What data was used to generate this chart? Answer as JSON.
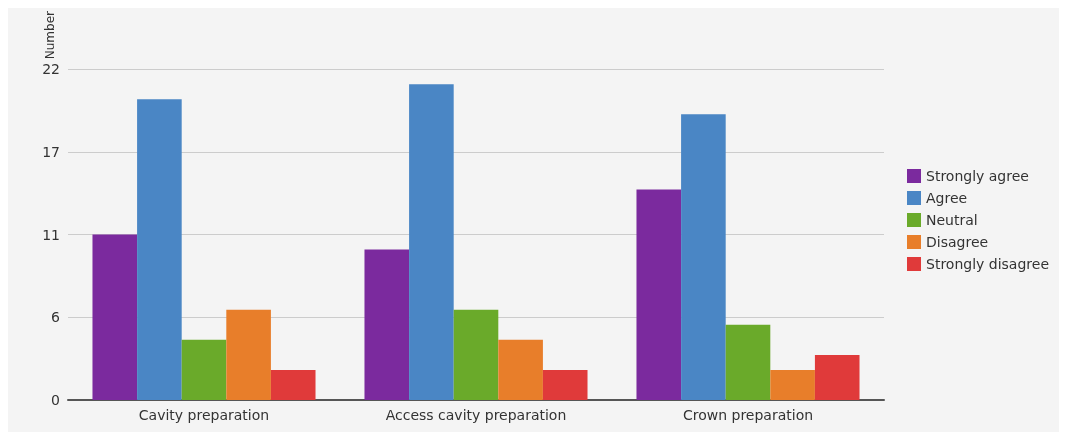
{
  "chart_data": {
    "type": "bar",
    "ylabel": "Number",
    "categories": [
      "Cavity preparation",
      "Access cavity preparation",
      "Crown preparation"
    ],
    "series": [
      {
        "name": "Strongly agree",
        "color": "#7b2a9e",
        "values": [
          11,
          10,
          14
        ]
      },
      {
        "name": "Agree",
        "color": "#4a86c5",
        "values": [
          20,
          21,
          19
        ]
      },
      {
        "name": "Neutral",
        "color": "#6aaa2a",
        "values": [
          4,
          6,
          5
        ]
      },
      {
        "name": "Disagree",
        "color": "#e87e2a",
        "values": [
          6,
          4,
          2
        ]
      },
      {
        "name": "Strongly disagree",
        "color": "#e03a3a",
        "values": [
          2,
          2,
          3
        ]
      }
    ],
    "ylim": [
      0,
      22
    ],
    "yticks": [
      0,
      {
        "value": 5.5,
        "label": "6"
      },
      11,
      {
        "value": 16.5,
        "label": "17"
      },
      22
    ],
    "grid": "y",
    "legend": "right"
  }
}
